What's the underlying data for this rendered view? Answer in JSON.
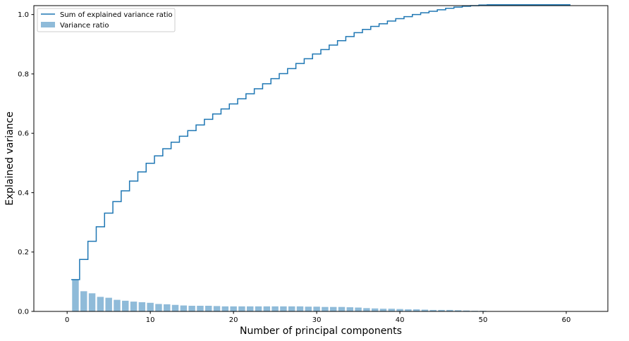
{
  "chart_data": {
    "type": "bar",
    "title": "",
    "xlabel": "Number of principal components",
    "ylabel": "Explained variance",
    "xlim": [
      -4,
      65
    ],
    "ylim": [
      0,
      1.03
    ],
    "xticks": [
      0,
      10,
      20,
      30,
      40,
      50,
      60
    ],
    "yticks": [
      0.0,
      0.2,
      0.4,
      0.6,
      0.8,
      1.0
    ],
    "grid": false,
    "legend_position": "upper-left",
    "colors": {
      "step": "#1f77b4",
      "bars": "#1f77b4",
      "bars_alpha": 0.5
    },
    "series": [
      {
        "name": "Variance ratio",
        "type": "bar",
        "x": [
          1,
          2,
          3,
          4,
          5,
          6,
          7,
          8,
          9,
          10,
          11,
          12,
          13,
          14,
          15,
          16,
          17,
          18,
          19,
          20,
          21,
          22,
          23,
          24,
          25,
          26,
          27,
          28,
          29,
          30,
          31,
          32,
          33,
          34,
          35,
          36,
          37,
          38,
          39,
          40,
          41,
          42,
          43,
          44,
          45,
          46,
          47,
          48,
          49,
          50,
          51,
          52,
          53,
          54,
          55,
          56,
          57,
          58,
          59,
          60
        ],
        "values": [
          0.107,
          0.068,
          0.061,
          0.049,
          0.046,
          0.039,
          0.036,
          0.033,
          0.031,
          0.029,
          0.025,
          0.024,
          0.022,
          0.02,
          0.019,
          0.019,
          0.019,
          0.018,
          0.017,
          0.017,
          0.017,
          0.017,
          0.017,
          0.017,
          0.017,
          0.017,
          0.017,
          0.017,
          0.016,
          0.016,
          0.015,
          0.015,
          0.015,
          0.014,
          0.013,
          0.011,
          0.01,
          0.009,
          0.009,
          0.008,
          0.007,
          0.007,
          0.006,
          0.005,
          0.005,
          0.005,
          0.004,
          0.003,
          0.002,
          0.002,
          0.001,
          0,
          0,
          0,
          0,
          0,
          0,
          0,
          0,
          0
        ]
      },
      {
        "name": "Sum of explained variance ratio",
        "type": "step",
        "x": [
          1,
          2,
          3,
          4,
          5,
          6,
          7,
          8,
          9,
          10,
          11,
          12,
          13,
          14,
          15,
          16,
          17,
          18,
          19,
          20,
          21,
          22,
          23,
          24,
          25,
          26,
          27,
          28,
          29,
          30,
          31,
          32,
          33,
          34,
          35,
          36,
          37,
          38,
          39,
          40,
          41,
          42,
          43,
          44,
          45,
          46,
          47,
          48,
          49,
          50,
          51,
          52,
          53,
          54,
          55,
          56,
          57,
          58,
          59,
          60
        ],
        "values": [
          0.107,
          0.175,
          0.236,
          0.285,
          0.331,
          0.37,
          0.406,
          0.439,
          0.47,
          0.499,
          0.524,
          0.548,
          0.57,
          0.59,
          0.609,
          0.628,
          0.647,
          0.665,
          0.682,
          0.699,
          0.716,
          0.733,
          0.75,
          0.767,
          0.784,
          0.801,
          0.818,
          0.835,
          0.851,
          0.867,
          0.882,
          0.897,
          0.912,
          0.926,
          0.939,
          0.95,
          0.96,
          0.969,
          0.978,
          0.986,
          0.993,
          1.0,
          1.006,
          1.011,
          1.016,
          1.021,
          1.025,
          1.028,
          1.03,
          1.032,
          1.033,
          1.033,
          1.033,
          1.033,
          1.033,
          1.033,
          1.033,
          1.033,
          1.033,
          1.033
        ]
      }
    ]
  }
}
